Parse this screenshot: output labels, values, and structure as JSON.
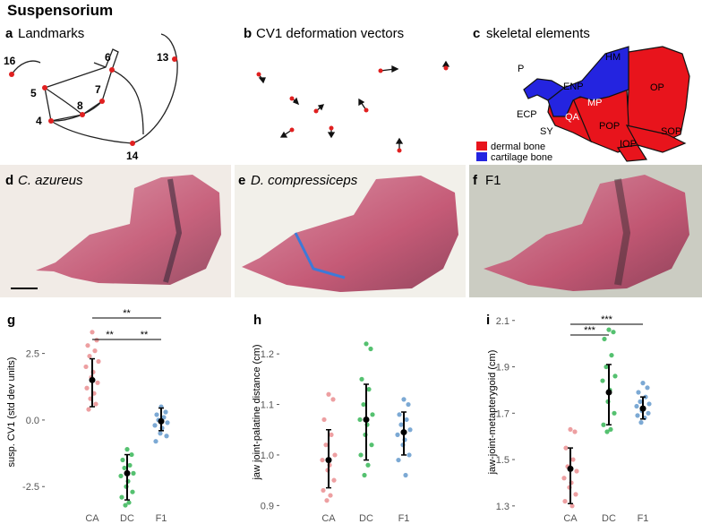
{
  "title": "Suspensorium",
  "panels": {
    "a": {
      "letter": "a",
      "title": "Landmarks",
      "landmarks": [
        "16",
        "5",
        "4",
        "8",
        "7",
        "6",
        "13",
        "14"
      ]
    },
    "b": {
      "letter": "b",
      "title": "CV1 deformation vectors"
    },
    "c": {
      "letter": "c",
      "title": "skeletal elements",
      "elements": [
        "HM",
        "P",
        "ENP",
        "MP",
        "QA",
        "ECP",
        "SY",
        "POP",
        "OP",
        "SOP",
        "IOP"
      ],
      "legend": [
        "dermal bone",
        "cartilage bone"
      ]
    },
    "d": {
      "letter": "d",
      "species": "C. azureus"
    },
    "e": {
      "letter": "e",
      "species": "D. compressiceps"
    },
    "f": {
      "letter": "f",
      "label": "F1"
    }
  },
  "chart_data": [
    {
      "type": "strip",
      "panel": "g",
      "ylabel": "susp. CV1 (std dev units)",
      "categories": [
        "CA",
        "DC",
        "F1"
      ],
      "colors": [
        "#e8878a",
        "#2bb24c",
        "#5b93c9"
      ],
      "points": [
        [
          3.3,
          3.0,
          2.8,
          2.6,
          2.4,
          2.2,
          2.0,
          1.8,
          1.6,
          1.4,
          1.2,
          1.0,
          0.8,
          0.6,
          0.4
        ],
        [
          -1.1,
          -1.3,
          -1.5,
          -1.7,
          -1.8,
          -2.0,
          -2.1,
          -2.3,
          -2.5,
          -2.7,
          -2.9,
          -3.1,
          -3.2
        ],
        [
          0.5,
          0.3,
          0.2,
          0.1,
          0.0,
          -0.1,
          -0.2,
          -0.3,
          -0.5,
          -0.6,
          -0.8
        ]
      ],
      "mean": [
        1.5,
        -2.0,
        -0.05
      ],
      "ci_low": [
        0.5,
        -3.0,
        -0.4
      ],
      "ci_high": [
        2.3,
        -1.3,
        0.45
      ],
      "ylim": [
        -3.4,
        4.0
      ],
      "yticks": [
        -2.5,
        {
          "value": 0,
          "label": "0.0"
        },
        2.5
      ],
      "significance": [
        "**",
        "**",
        "**"
      ]
    },
    {
      "type": "strip",
      "panel": "h",
      "ylabel": "jaw joint-palatine distance (cm)",
      "categories": [
        "CA",
        "DC",
        "F1"
      ],
      "colors": [
        "#e8878a",
        "#2bb24c",
        "#5b93c9"
      ],
      "points": [
        [
          1.12,
          1.11,
          1.07,
          1.04,
          1.02,
          1.0,
          0.99,
          0.98,
          0.97,
          0.95,
          0.93,
          0.92,
          0.91
        ],
        [
          1.22,
          1.21,
          1.15,
          1.13,
          1.1,
          1.08,
          1.07,
          1.06,
          1.04,
          1.02,
          1.0,
          0.98,
          0.96
        ],
        [
          1.11,
          1.1,
          1.08,
          1.07,
          1.06,
          1.05,
          1.04,
          1.03,
          1.02,
          1.0,
          0.99,
          0.96
        ]
      ],
      "mean": [
        0.99,
        1.07,
        1.045
      ],
      "ci_low": [
        0.935,
        0.99,
        1.0
      ],
      "ci_high": [
        1.05,
        1.14,
        1.085
      ],
      "ylim": [
        0.89,
        1.28
      ],
      "yticks": [
        0.9,
        {
          "value": 1,
          "label": "1.0"
        },
        1.1,
        1.2
      ],
      "significance": []
    },
    {
      "type": "strip",
      "panel": "i",
      "ylabel": "jaw-joint-metapterygoid (cm)",
      "categories": [
        "CA",
        "DC",
        "F1"
      ],
      "colors": [
        "#e8878a",
        "#2bb24c",
        "#5b93c9"
      ],
      "points": [
        [
          1.63,
          1.62,
          1.55,
          1.5,
          1.47,
          1.45,
          1.42,
          1.4,
          1.38,
          1.35,
          1.32,
          1.3
        ],
        [
          2.06,
          2.05,
          2.02,
          1.95,
          1.9,
          1.86,
          1.84,
          1.8,
          1.75,
          1.7,
          1.65,
          1.63,
          1.62
        ],
        [
          1.83,
          1.81,
          1.79,
          1.77,
          1.75,
          1.74,
          1.73,
          1.72,
          1.71,
          1.7,
          1.69,
          1.68,
          1.66
        ]
      ],
      "mean": [
        1.46,
        1.79,
        1.72
      ],
      "ci_low": [
        1.31,
        1.65,
        1.675
      ],
      "ci_high": [
        1.55,
        1.91,
        1.77
      ],
      "ylim": [
        1.28,
        2.13
      ],
      "yticks": [
        1.3,
        1.5,
        1.7,
        1.9,
        2.1
      ],
      "significance": [
        "***",
        "***"
      ]
    }
  ]
}
